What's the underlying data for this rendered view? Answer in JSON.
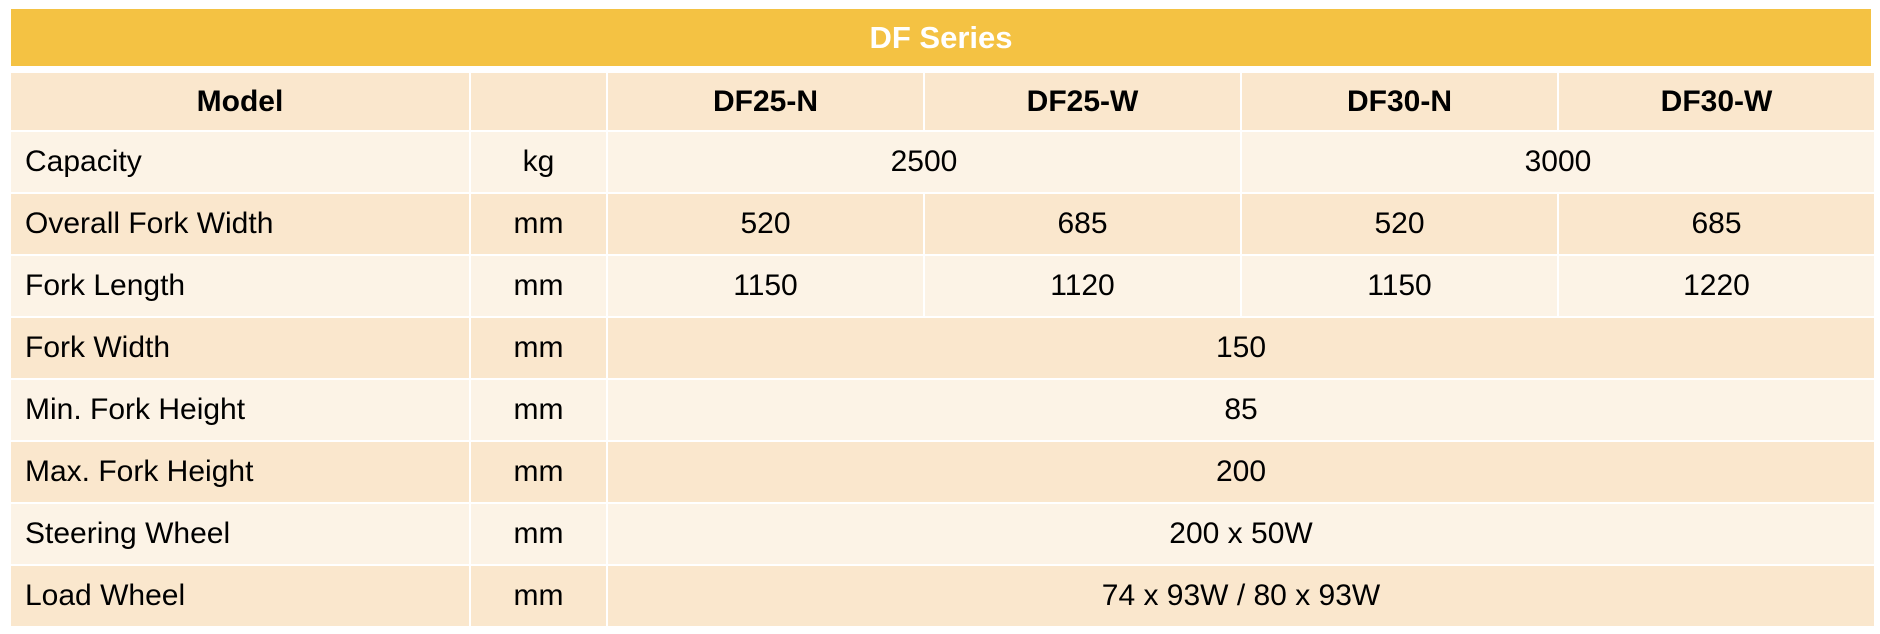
{
  "title": "DF Series",
  "colors": {
    "title_band": "#F4C243",
    "title_text": "#FFFFFF",
    "row_dark": "#FAE7CD",
    "row_light": "#FCF3E6",
    "border": "#FFFFFF"
  },
  "header": {
    "model_label": "Model",
    "unit_label": "",
    "models": [
      "DF25-N",
      "DF25-W",
      "DF30-N",
      "DF30-W"
    ]
  },
  "rows": [
    {
      "label": "Capacity",
      "unit": "kg",
      "values": [
        "2500",
        "3000"
      ],
      "span": "pairs"
    },
    {
      "label": "Overall Fork Width",
      "unit": "mm",
      "values": [
        "520",
        "685",
        "520",
        "685"
      ]
    },
    {
      "label": "Fork Length",
      "unit": "mm",
      "values": [
        "1150",
        "1120",
        "1150",
        "1220"
      ]
    },
    {
      "label": "Fork Width",
      "unit": "mm",
      "values": [
        "150"
      ],
      "span": "all"
    },
    {
      "label": "Min. Fork Height",
      "unit": "mm",
      "values": [
        "85"
      ],
      "span": "all"
    },
    {
      "label": "Max. Fork Height",
      "unit": "mm",
      "values": [
        "200"
      ],
      "span": "all"
    },
    {
      "label": "Steering Wheel",
      "unit": "mm",
      "values": [
        "200 x 50W"
      ],
      "span": "all"
    },
    {
      "label": "Load Wheel",
      "unit": "mm",
      "values": [
        "74 x 93W / 80 x 93W"
      ],
      "span": "all"
    }
  ]
}
